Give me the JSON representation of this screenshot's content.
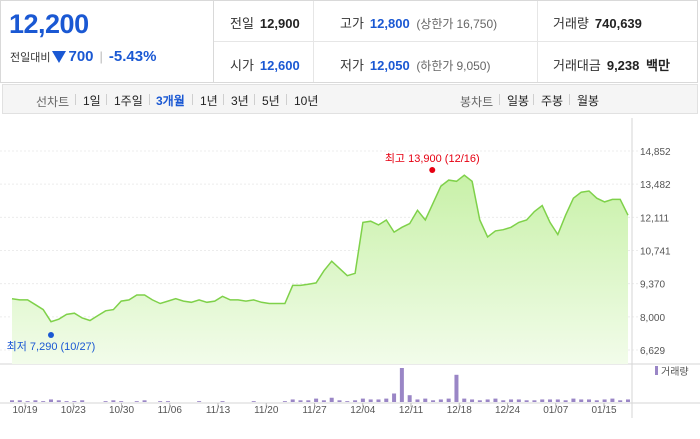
{
  "summary": {
    "price": "12,200",
    "change_label": "전일대비",
    "change_value": "700",
    "change_percent": "-5.43%",
    "prev_close_label": "전일",
    "prev_close": "12,900",
    "high_label": "고가",
    "high": "12,800",
    "upper_limit_label": "(상한가",
    "upper_limit": "16,750)",
    "volume_label": "거래량",
    "volume": "740,639",
    "open_label": "시가",
    "open": "12,600",
    "low_label": "저가",
    "low": "12,050",
    "lower_limit_label": "(하한가",
    "lower_limit": "9,050)",
    "amount_label": "거래대금",
    "amount": "9,238",
    "amount_unit": "백만"
  },
  "tabs": {
    "line_label": "선차트",
    "line_tabs": [
      "1일",
      "1주일",
      "3개월",
      "1년",
      "3년",
      "5년",
      "10년"
    ],
    "line_active": "3개월",
    "candle_label": "봉차트",
    "candle_tabs": [
      "일봉",
      "주봉",
      "월봉"
    ]
  },
  "chart_data": {
    "type": "area",
    "y_ticks": [
      "14,852",
      "13,482",
      "12,111",
      "10,741",
      "9,370",
      "8,000",
      "6,629"
    ],
    "ylim": [
      6629,
      14852
    ],
    "x_tick_labels": [
      "10/19",
      "10/23",
      "10/30",
      "11/06",
      "11/13",
      "11/20",
      "11/27",
      "12/04",
      "12/11",
      "12/18",
      "12/24",
      "01/07",
      "01/15"
    ],
    "max_annotation": "최고 13,900 (12/16)",
    "min_annotation": "최저 7,290 (10/27)",
    "volume_label": "거래량",
    "colors": {
      "line": "#7fd14a",
      "fill_top": "#c8f1a8",
      "fill_bottom": "#f2fcea",
      "volume": "#9a86c6",
      "max": "#e60012",
      "min": "#1a58d3"
    },
    "price_series": [
      8750,
      8700,
      8700,
      8500,
      8300,
      7800,
      7900,
      8100,
      8150,
      7950,
      7850,
      8050,
      8250,
      8300,
      8650,
      8700,
      8900,
      8900,
      8700,
      8550,
      8650,
      8750,
      8650,
      8600,
      8700,
      8600,
      8650,
      8850,
      8700,
      8700,
      8650,
      8700,
      8600,
      8550,
      8550,
      8550,
      9300,
      9300,
      9350,
      9400,
      9900,
      10300,
      10000,
      9700,
      9800,
      11900,
      11950,
      11800,
      12000,
      11500,
      11700,
      11850,
      12400,
      12000,
      12700,
      13400,
      13650,
      13600,
      13850,
      13600,
      12000,
      11300,
      11550,
      11600,
      11700,
      11900,
      12000,
      12350,
      12600,
      11900,
      11400,
      12200,
      12900,
      13150,
      13200,
      12900,
      12750,
      12850,
      12850,
      12200
    ],
    "volume_series": [
      2,
      2,
      1,
      2,
      1,
      3,
      2,
      1,
      1,
      2,
      0,
      0,
      1,
      2,
      1,
      0,
      1,
      2,
      0,
      1,
      1,
      0,
      0,
      0,
      1,
      0,
      0,
      1,
      0,
      0,
      0,
      1,
      0,
      0,
      0,
      1,
      3,
      2,
      2,
      4,
      2,
      5,
      2,
      1,
      2,
      4,
      3,
      3,
      4,
      10,
      40,
      8,
      3,
      4,
      2,
      3,
      4,
      32,
      4,
      3,
      2,
      3,
      4,
      2,
      3,
      3,
      2,
      2,
      3,
      3,
      3,
      2,
      4,
      3,
      3,
      2,
      3,
      4,
      2,
      3
    ]
  }
}
